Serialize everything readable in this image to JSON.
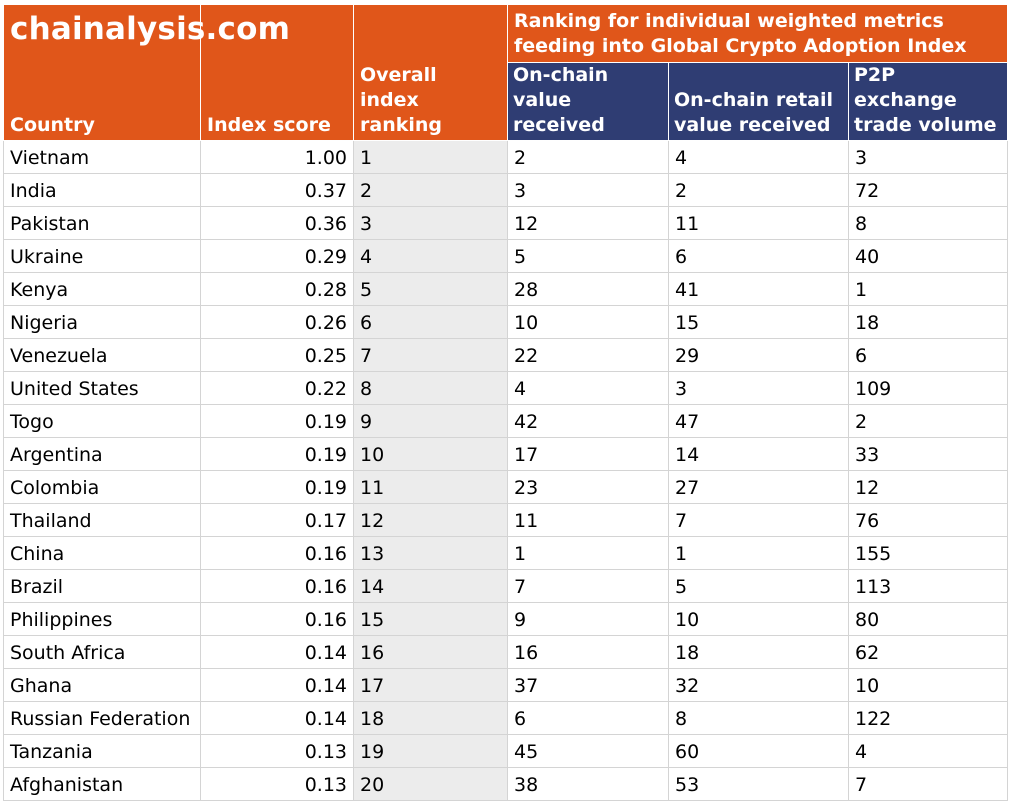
{
  "brand": {
    "logo_text": "chainalysis.com"
  },
  "colors": {
    "header_orange": "#e0561a",
    "header_navy": "#2f3d73",
    "highlight_column": "#ececec"
  },
  "chart_data": {
    "type": "table",
    "group_header": "Ranking for individual weighted metrics feeding into Global Crypto Adoption Index",
    "columns": [
      "Country",
      "Index score",
      "Overall index ranking",
      "On-chain value received",
      "On-chain retail value received",
      "P2P exchange trade volume"
    ],
    "rows": [
      [
        "Vietnam",
        "1.00",
        "1",
        "2",
        "4",
        "3"
      ],
      [
        "India",
        "0.37",
        "2",
        "3",
        "2",
        "72"
      ],
      [
        "Pakistan",
        "0.36",
        "3",
        "12",
        "11",
        "8"
      ],
      [
        "Ukraine",
        "0.29",
        "4",
        "5",
        "6",
        "40"
      ],
      [
        "Kenya",
        "0.28",
        "5",
        "28",
        "41",
        "1"
      ],
      [
        "Nigeria",
        "0.26",
        "6",
        "10",
        "15",
        "18"
      ],
      [
        "Venezuela",
        "0.25",
        "7",
        "22",
        "29",
        "6"
      ],
      [
        "United States",
        "0.22",
        "8",
        "4",
        "3",
        "109"
      ],
      [
        "Togo",
        "0.19",
        "9",
        "42",
        "47",
        "2"
      ],
      [
        "Argentina",
        "0.19",
        "10",
        "17",
        "14",
        "33"
      ],
      [
        "Colombia",
        "0.19",
        "11",
        "23",
        "27",
        "12"
      ],
      [
        "Thailand",
        "0.17",
        "12",
        "11",
        "7",
        "76"
      ],
      [
        "China",
        "0.16",
        "13",
        "1",
        "1",
        "155"
      ],
      [
        "Brazil",
        "0.16",
        "14",
        "7",
        "5",
        "113"
      ],
      [
        "Philippines",
        "0.16",
        "15",
        "9",
        "10",
        "80"
      ],
      [
        "South Africa",
        "0.14",
        "16",
        "16",
        "18",
        "62"
      ],
      [
        "Ghana",
        "0.14",
        "17",
        "37",
        "32",
        "10"
      ],
      [
        "Russian Federation",
        "0.14",
        "18",
        "6",
        "8",
        "122"
      ],
      [
        "Tanzania",
        "0.13",
        "19",
        "45",
        "60",
        "4"
      ],
      [
        "Afghanistan",
        "0.13",
        "20",
        "38",
        "53",
        "7"
      ]
    ]
  }
}
